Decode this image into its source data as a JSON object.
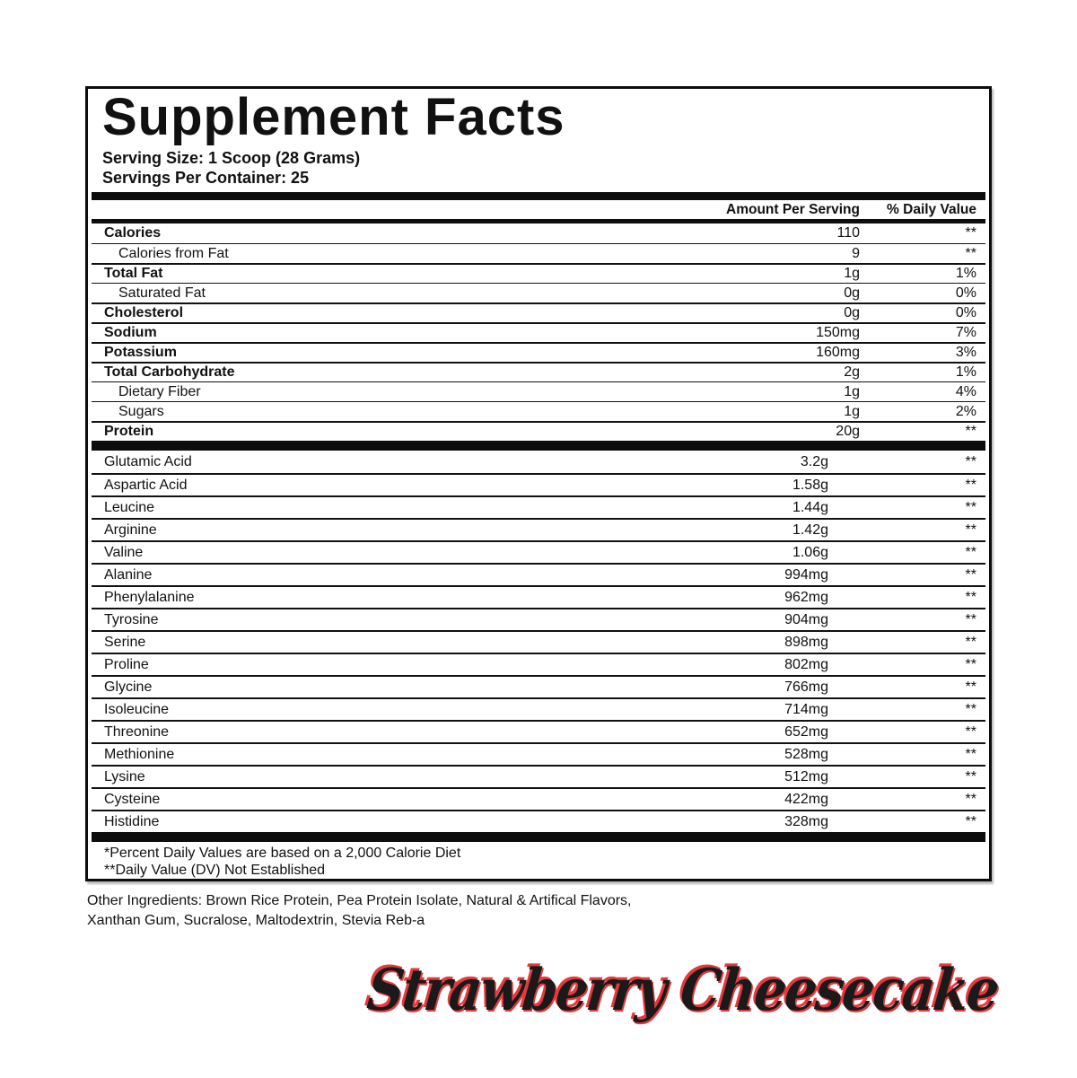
{
  "supplement_facts": {
    "title": "Supplement Facts",
    "serving_size": "Serving Size: 1 Scoop (28 Grams)",
    "servings_per_container": "Servings Per Container: 25",
    "column_headers": {
      "amount": "Amount Per Serving",
      "daily_value": "% Daily Value"
    },
    "nutrient_rows": [
      {
        "name": "Calories",
        "amount": "110",
        "dv": "**",
        "style": "bold",
        "sep": "none"
      },
      {
        "name": "Calories from Fat",
        "amount": "9",
        "dv": "**",
        "style": "indent",
        "sep": "thin"
      },
      {
        "name": "Total Fat",
        "amount": "1g",
        "dv": "1%",
        "style": "bold",
        "sep": "medium"
      },
      {
        "name": "Saturated Fat",
        "amount": "0g",
        "dv": "0%",
        "style": "indent",
        "sep": "thin"
      },
      {
        "name": "Cholesterol",
        "amount": "0g",
        "dv": "0%",
        "style": "bold",
        "sep": "medium"
      },
      {
        "name": "Sodium",
        "amount": "150mg",
        "dv": "7%",
        "style": "bold",
        "sep": "medium"
      },
      {
        "name": "Potassium",
        "amount": "160mg",
        "dv": "3%",
        "style": "bold",
        "sep": "medium"
      },
      {
        "name": "Total Carbohydrate",
        "amount": "2g",
        "dv": "1%",
        "style": "bold",
        "sep": "medium"
      },
      {
        "name": "Dietary Fiber",
        "amount": "1g",
        "dv": "4%",
        "style": "indent",
        "sep": "thin"
      },
      {
        "name": "Sugars",
        "amount": "1g",
        "dv": "2%",
        "style": "indent",
        "sep": "thin"
      },
      {
        "name": "Protein",
        "amount": "20g",
        "dv": "**",
        "style": "bold",
        "sep": "medium"
      }
    ],
    "amino_acid_rows": [
      {
        "name": "Glutamic Acid",
        "amount": "3.2g",
        "dv": "**",
        "sep": "none"
      },
      {
        "name": "Aspartic Acid",
        "amount": "1.58g",
        "dv": "**",
        "sep": "medium"
      },
      {
        "name": "Leucine",
        "amount": "1.44g",
        "dv": "**",
        "sep": "medium"
      },
      {
        "name": "Arginine",
        "amount": "1.42g",
        "dv": "**",
        "sep": "medium"
      },
      {
        "name": "Valine",
        "amount": "1.06g",
        "dv": "**",
        "sep": "medium"
      },
      {
        "name": "Alanine",
        "amount": "994mg",
        "dv": "**",
        "sep": "medium"
      },
      {
        "name": "Phenylalanine",
        "amount": "962mg",
        "dv": "**",
        "sep": "medium"
      },
      {
        "name": "Tyrosine",
        "amount": "904mg",
        "dv": "**",
        "sep": "medium"
      },
      {
        "name": "Serine",
        "amount": "898mg",
        "dv": "**",
        "sep": "medium"
      },
      {
        "name": "Proline",
        "amount": "802mg",
        "dv": "**",
        "sep": "medium"
      },
      {
        "name": "Glycine",
        "amount": "766mg",
        "dv": "**",
        "sep": "medium"
      },
      {
        "name": "Isoleucine",
        "amount": "714mg",
        "dv": "**",
        "sep": "medium"
      },
      {
        "name": "Threonine",
        "amount": "652mg",
        "dv": "**",
        "sep": "medium"
      },
      {
        "name": "Methionine",
        "amount": "528mg",
        "dv": "**",
        "sep": "medium"
      },
      {
        "name": "Lysine",
        "amount": "512mg",
        "dv": "**",
        "sep": "medium"
      },
      {
        "name": "Cysteine",
        "amount": "422mg",
        "dv": "**",
        "sep": "medium"
      },
      {
        "name": "Histidine",
        "amount": "328mg",
        "dv": "**",
        "sep": "medium"
      }
    ],
    "footnotes": [
      "*Percent Daily Values are based on a 2,000 Calorie Diet",
      "**Daily Value (DV) Not Established"
    ]
  },
  "other_ingredients": {
    "line1": "Other Ingredients: Brown Rice Protein, Pea Protein Isolate, Natural & Artifical Flavors,",
    "line2": "Xanthan Gum, Sucralose, Maltodextrin, Stevia Reb-a"
  },
  "flavor_name": "Strawberry Cheesecake",
  "colors": {
    "ink": "#111111",
    "flavor_black": "#1a1a1a",
    "flavor_red": "#e4393d"
  }
}
